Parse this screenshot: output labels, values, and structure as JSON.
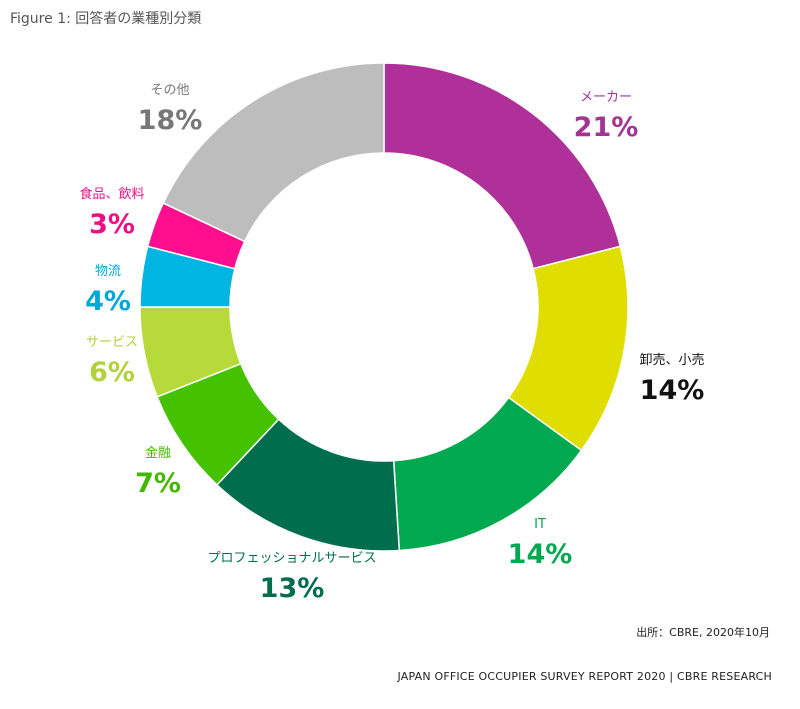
{
  "figure_title": "Figure 1: 回答者の業種別分類",
  "source": "出所：CBRE, 2020年10月",
  "footer": "JAPAN OFFICE OCCUPIER SURVEY REPORT 2020 | CBRE RESEARCH",
  "chart_data": {
    "type": "pie",
    "donut": true,
    "title": "",
    "unit": "%",
    "slices": [
      {
        "label": "メーカー",
        "value": 21,
        "display": "21%",
        "color": "#B0309A",
        "label_color": "#A33493"
      },
      {
        "label": "卸売、小売",
        "value": 14,
        "display": "14%",
        "color": "#E0DD00",
        "label_color": "#111111"
      },
      {
        "label": "IT",
        "value": 14,
        "display": "14%",
        "color": "#00A94F",
        "label_color": "#00A94F"
      },
      {
        "label": "プロフェッショナルサービス",
        "value": 13,
        "display": "13%",
        "color": "#006D4C",
        "label_color": "#006D4C"
      },
      {
        "label": "金融",
        "value": 7,
        "display": "7%",
        "color": "#44C200",
        "label_color": "#44B800"
      },
      {
        "label": "サービス",
        "value": 6,
        "display": "6%",
        "color": "#B5DA3A",
        "label_color": "#B0D23C"
      },
      {
        "label": "物流",
        "value": 4,
        "display": "4%",
        "color": "#00B5E2",
        "label_color": "#00A7D9"
      },
      {
        "label": "食品、飲料",
        "value": 3,
        "display": "3%",
        "color": "#FF0E8E",
        "label_color": "#EE0F85"
      },
      {
        "label": "その他",
        "value": 18,
        "display": "18%",
        "color": "#BDBDBD",
        "label_color": "#777777"
      }
    ]
  }
}
